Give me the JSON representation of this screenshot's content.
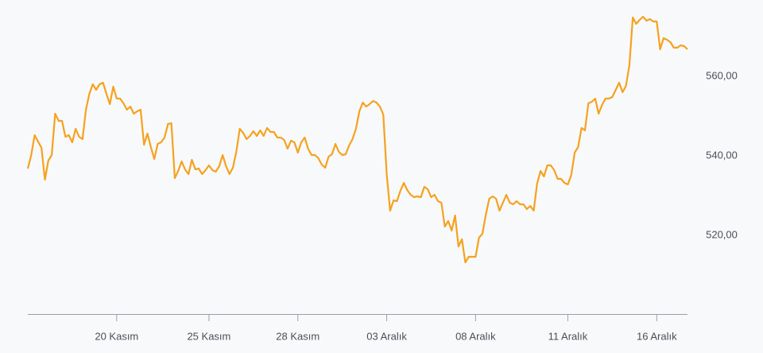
{
  "chart_data": {
    "type": "line",
    "color": "#f5a21e",
    "categories": [
      null,
      null,
      null,
      null,
      null,
      null,
      null,
      null,
      null,
      null,
      null,
      null,
      null,
      null,
      null,
      null,
      null,
      null,
      null,
      null,
      null,
      null,
      null,
      null,
      null,
      null,
      "20 Kasım",
      null,
      null,
      null,
      null,
      null,
      null,
      null,
      null,
      null,
      null,
      null,
      null,
      null,
      null,
      null,
      null,
      null,
      null,
      null,
      null,
      null,
      null,
      null,
      null,
      null,
      null,
      "25 Kasım",
      null,
      null,
      null,
      null,
      null,
      null,
      null,
      null,
      null,
      null,
      null,
      null,
      null,
      null,
      null,
      null,
      null,
      null,
      null,
      null,
      null,
      null,
      null,
      null,
      null,
      "28 Kasım",
      null,
      null,
      null,
      null,
      null,
      null,
      null,
      null,
      null,
      null,
      null,
      null,
      null,
      null,
      null,
      null,
      null,
      null,
      null,
      null,
      null,
      null,
      null,
      null,
      null,
      "03 Aralık",
      null,
      null,
      null,
      null,
      null,
      null,
      null,
      null,
      null,
      null,
      null,
      null,
      null,
      null,
      null,
      null,
      null,
      null,
      null,
      null,
      null,
      null,
      null,
      null,
      null,
      "08 Aralık",
      null,
      null,
      null,
      null,
      null,
      null,
      null,
      null,
      null,
      null,
      null,
      null,
      null,
      null,
      null,
      null,
      null,
      null,
      null,
      null,
      null,
      null,
      null,
      null,
      null,
      null,
      "11 Aralık",
      null,
      null,
      null,
      null,
      null,
      null,
      null,
      null,
      null,
      null,
      null,
      null,
      null,
      null,
      null,
      null,
      null,
      null,
      null,
      null,
      null,
      null,
      null,
      null,
      null,
      "16 Aralık",
      null,
      null,
      null,
      null,
      null,
      null,
      null,
      null,
      null
    ],
    "values": [
      536.8,
      540.2,
      545.2,
      543.6,
      542,
      534,
      538.8,
      540.2,
      550.6,
      548.8,
      548.8,
      544.8,
      545.2,
      543.4,
      546.8,
      544.8,
      544.2,
      551.6,
      555.6,
      558,
      556.6,
      558,
      558.4,
      555.6,
      553,
      557.4,
      554.4,
      554.4,
      553.2,
      551.6,
      552.4,
      550.6,
      551.2,
      551.6,
      542.8,
      545.6,
      542.2,
      539.2,
      543,
      543.4,
      544.6,
      548,
      548.2,
      534.4,
      536.2,
      538.6,
      536.6,
      535.4,
      539,
      536.6,
      536.8,
      535.4,
      536.4,
      537.6,
      536.4,
      536,
      537.4,
      540.2,
      537.4,
      535.4,
      537,
      541,
      546.8,
      545.8,
      544.2,
      545,
      546.2,
      545,
      546.4,
      545,
      547,
      546,
      546,
      544.6,
      544.6,
      544,
      541.8,
      543.8,
      543.4,
      540.8,
      543.4,
      544.6,
      541.8,
      540.2,
      540.2,
      539.4,
      537.8,
      537,
      539.8,
      540.4,
      543,
      541,
      540.2,
      540.4,
      542.6,
      544.2,
      546.8,
      551.2,
      553.4,
      552.4,
      553,
      553.8,
      553.4,
      552.4,
      550.4,
      535.4,
      526.2,
      528.8,
      528.6,
      531.2,
      533.2,
      531.4,
      530.2,
      529.6,
      529.8,
      529.6,
      532.2,
      531.6,
      529.6,
      530.2,
      528.6,
      528.2,
      522.2,
      523.6,
      521.2,
      525,
      517.2,
      519,
      513.2,
      514.6,
      514.6,
      514.6,
      519.4,
      520.4,
      525.2,
      529.2,
      529.8,
      529.2,
      526.2,
      528.2,
      530.2,
      528.2,
      527.8,
      528.6,
      527.8,
      527.8,
      526.6,
      527.4,
      526.2,
      533,
      536.2,
      534.8,
      537.6,
      537.6,
      536.4,
      534.2,
      534.2,
      533.2,
      532.8,
      535.2,
      540.8,
      542.2,
      547,
      546.4,
      553.2,
      553.6,
      554.4,
      550.6,
      552.8,
      554.4,
      554.4,
      554.8,
      556.6,
      558.4,
      556,
      557.6,
      562.8,
      574.8,
      573.2,
      574.2,
      575,
      574,
      574.4,
      573.8,
      573.8,
      566.8,
      569.6,
      569.2,
      568.6,
      567.2,
      567.2,
      567.8,
      567.6,
      566.8
    ],
    "ylim": [
      500,
      576
    ],
    "yticks": [
      {
        "value": 520,
        "label": "520,00"
      },
      {
        "value": 540,
        "label": "540,00"
      },
      {
        "value": 560,
        "label": "560,00"
      }
    ]
  }
}
